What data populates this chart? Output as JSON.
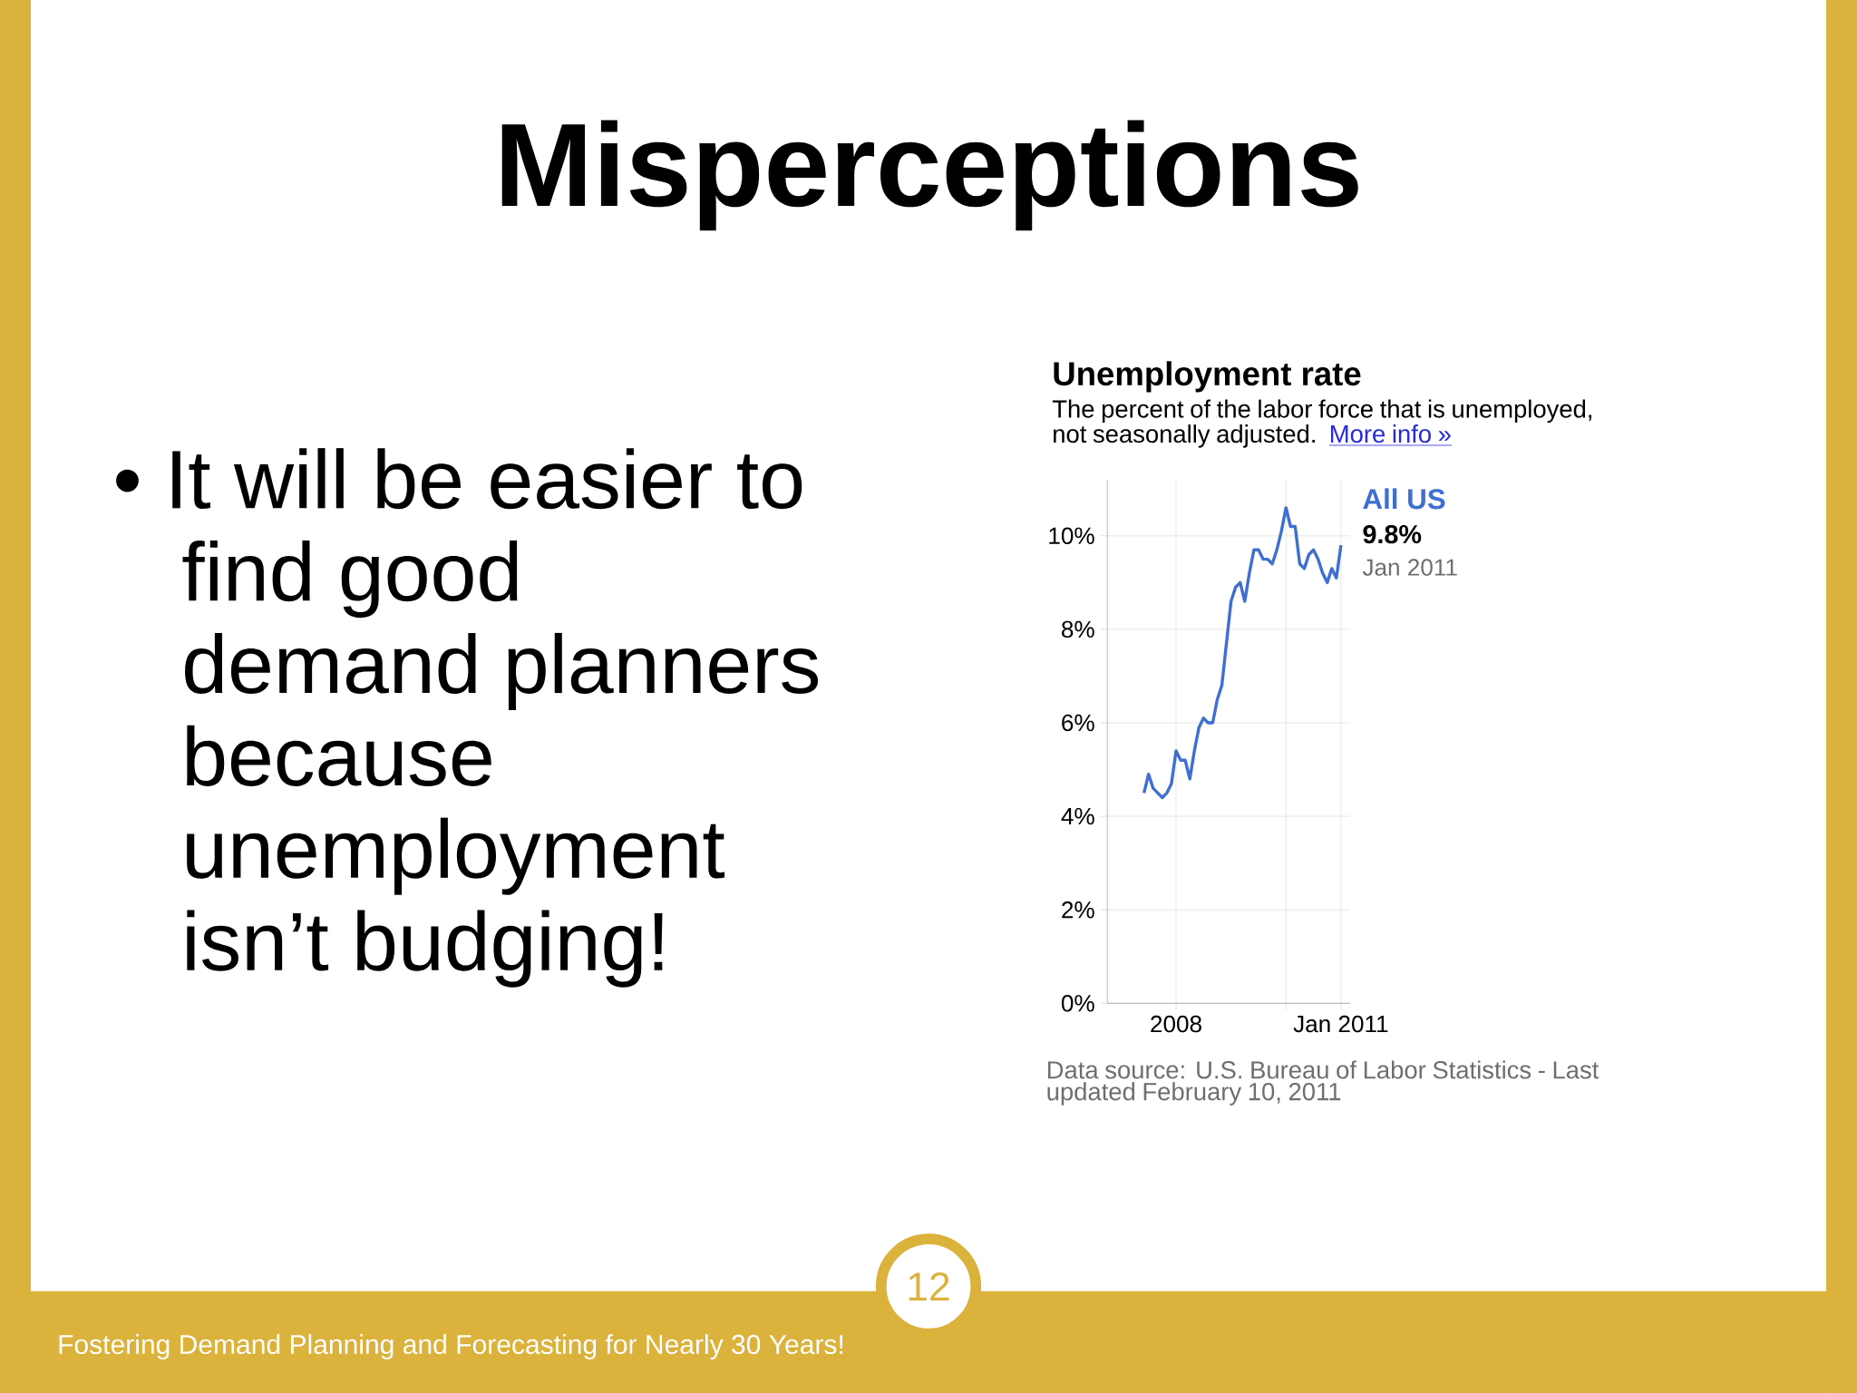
{
  "chart_data": {
    "type": "line",
    "title": "Unemployment rate",
    "subtitle": "The percent of the labor force that is unemployed, not seasonally adjusted.",
    "annotations": [
      "Misperceptions",
      "• It will be easier to find good demand planners because unemployment isn’t budging!",
      "More info »",
      "9.8%",
      "Jan 2011",
      "Data source: U.S. Bureau of Labor Statistics - Last updated February 10, 2011",
      "Fostering Demand Planning and Forecasting for Nearly 30 Years!",
      "12"
    ],
    "x": [
      "2007-06",
      "2007-07",
      "2007-08",
      "2007-09",
      "2007-10",
      "2007-11",
      "2007-12",
      "2008-01",
      "2008-02",
      "2008-03",
      "2008-04",
      "2008-05",
      "2008-06",
      "2008-07",
      "2008-08",
      "2008-09",
      "2008-10",
      "2008-11",
      "2008-12",
      "2009-01",
      "2009-02",
      "2009-03",
      "2009-04",
      "2009-05",
      "2009-06",
      "2009-07",
      "2009-08",
      "2009-09",
      "2009-10",
      "2009-11",
      "2009-12",
      "2010-01",
      "2010-02",
      "2010-03",
      "2010-04",
      "2010-05",
      "2010-06",
      "2010-07",
      "2010-08",
      "2010-09",
      "2010-10",
      "2010-11",
      "2010-12",
      "2011-01"
    ],
    "series": [
      {
        "name": "All US",
        "color": "#3f6fd1",
        "values": [
          4.5,
          4.9,
          4.6,
          4.5,
          4.4,
          4.5,
          4.7,
          5.4,
          5.2,
          5.2,
          4.8,
          5.4,
          5.9,
          6.1,
          6.0,
          6.0,
          6.5,
          6.8,
          7.7,
          8.6,
          8.9,
          9.0,
          8.6,
          9.2,
          9.7,
          9.7,
          9.5,
          9.5,
          9.4,
          9.7,
          10.1,
          10.6,
          10.2,
          10.2,
          9.4,
          9.3,
          9.6,
          9.7,
          9.5,
          9.2,
          9.0,
          9.3,
          9.1,
          9.8
        ]
      }
    ],
    "xlim": [
      "2006-10",
      "2011-03"
    ],
    "xticks": [
      {
        "value": "2008-01",
        "label": "2008"
      },
      {
        "value": "2010-01",
        "label": null
      },
      {
        "value": "2011-01",
        "label": "Jan 2011"
      }
    ],
    "ylim": [
      0,
      11.2
    ],
    "yticks": [
      {
        "value": 0,
        "label": "0%"
      },
      {
        "value": 2,
        "label": "2%"
      },
      {
        "value": 4,
        "label": "4%"
      },
      {
        "value": 6,
        "label": "6%"
      },
      {
        "value": 8,
        "label": "8%"
      },
      {
        "value": 10,
        "label": "10%"
      }
    ],
    "grid": true,
    "marker": "none",
    "line_style": "solid"
  }
}
